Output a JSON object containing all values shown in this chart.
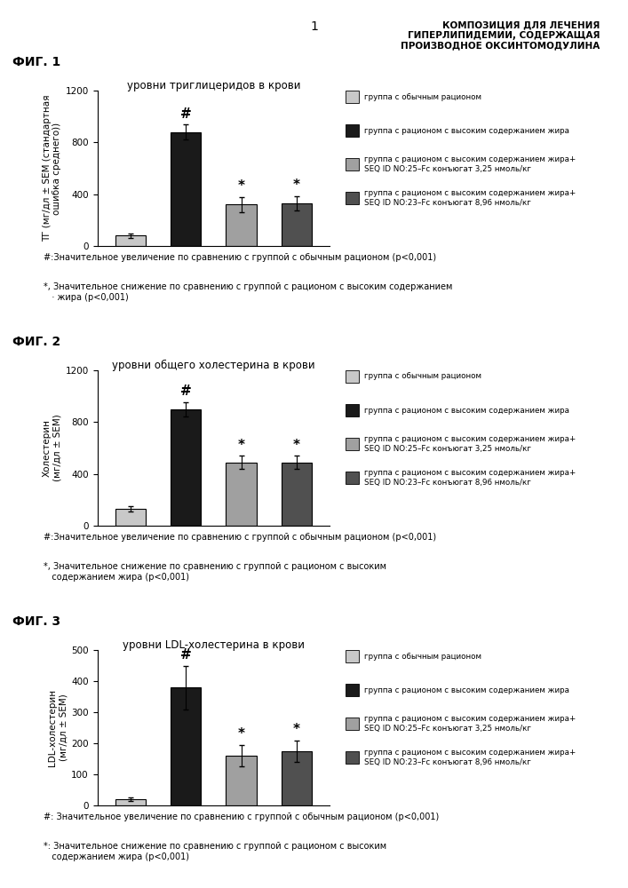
{
  "header_num": "1",
  "header_title": "КОМПОЗИЦИЯ ДЛЯ ЛЕЧЕНИЯ\nГИПЕРЛИПИДЕМИИ, СОДЕРЖАЩАЯ\nПРОИЗВОДНОЕ ОКСИНТОМОДУЛИНА",
  "figures": [
    {
      "fig_label": "ФИГ. 1",
      "title": "уровни триглицеридов в крови",
      "ylabel": "ТГ (мг/дл ± SEM (стандартная\nошибка среднего))",
      "ylim": [
        0,
        1200
      ],
      "yticks": [
        0,
        400,
        800,
        1200
      ],
      "bars": [
        80,
        880,
        320,
        330
      ],
      "errors": [
        15,
        60,
        60,
        55
      ],
      "colors": [
        "#c8c8c8",
        "#1a1a1a",
        "#a0a0a0",
        "#505050"
      ],
      "annotations": [
        "",
        "#",
        "*",
        "*"
      ],
      "footnote1": "#:Значительное увеличение по сравнению с группой с обычным рационом (p<0,001)",
      "footnote2": "*, Значительное снижение по сравнению с группой с рационом с высоким содержанием\n   · жира (p<0,001)"
    },
    {
      "fig_label": "ФИГ. 2",
      "title": "уровни общего холестерина в крови",
      "ylabel": "Холестерин\n(мг/дл ± SEM)",
      "ylim": [
        0,
        1200
      ],
      "yticks": [
        0,
        400,
        800,
        1200
      ],
      "bars": [
        130,
        900,
        490,
        490
      ],
      "errors": [
        20,
        55,
        50,
        50
      ],
      "colors": [
        "#c8c8c8",
        "#1a1a1a",
        "#a0a0a0",
        "#505050"
      ],
      "annotations": [
        "",
        "#",
        "*",
        "*"
      ],
      "footnote1": "#:Значительное увеличение по сравнению с группой с обычным рационом (p<0,001)",
      "footnote2": "*, Значительное снижение по сравнению с группой с рационом с высоким\n   содержанием жира (p<0,001)"
    },
    {
      "fig_label": "ФИГ. 3",
      "title": "уровни LDL-холестерина в крови",
      "ylabel": "LDL-холестерин\n(мг/дл ± SEM)",
      "ylim": [
        0,
        500
      ],
      "yticks": [
        0,
        100,
        200,
        300,
        400,
        500
      ],
      "bars": [
        20,
        380,
        160,
        175
      ],
      "errors": [
        5,
        70,
        35,
        35
      ],
      "colors": [
        "#c8c8c8",
        "#1a1a1a",
        "#a0a0a0",
        "#505050"
      ],
      "annotations": [
        "",
        "#",
        "*",
        "*"
      ],
      "footnote1": "#: Значительное увеличение по сравнению с группой с обычным рационом (p<0,001)",
      "footnote2": "*: Значительное снижение по сравнению с группой с рационом с высоким\n   содержанием жира (p<0,001)"
    }
  ],
  "legend_labels": [
    "группа с обычным рационом",
    "группа с рационом с высоким содержанием жира",
    "группа с рационом с высоким содержанием жира+\nSEQ ID NO:25–Fc конъюгат 3,25 нмоль/кг",
    "группа с рационом с высоким содержанием жира+\nSEQ ID NO:23–Fc конъюгат 8,96 нмоль/кг"
  ],
  "legend_colors": [
    "#c8c8c8",
    "#1a1a1a",
    "#a0a0a0",
    "#505050"
  ]
}
